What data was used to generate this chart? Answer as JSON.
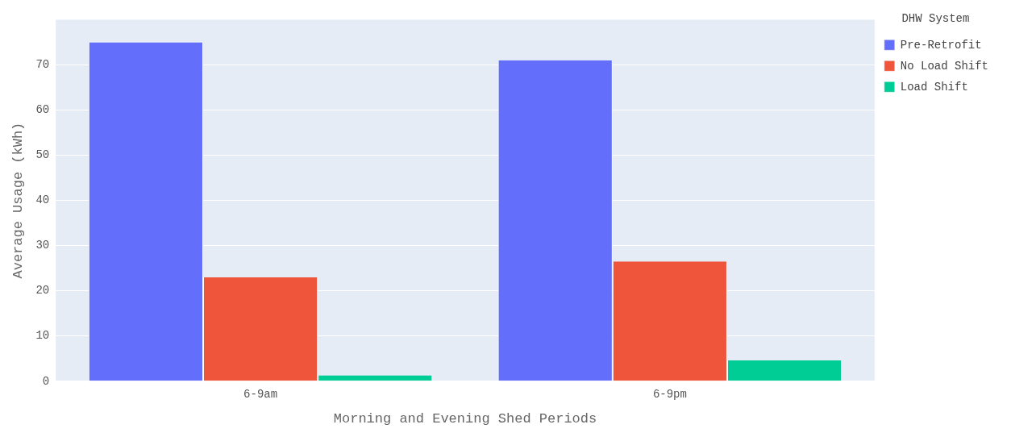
{
  "chart_data": {
    "type": "bar",
    "xlabel": "Morning and Evening Shed Periods",
    "ylabel": "Average Usage (kWh)",
    "legend_title": "DHW System",
    "categories": [
      "6-9am",
      "6-9pm"
    ],
    "series": [
      {
        "name": "Pre-Retrofit",
        "color": "#636efa",
        "values": [
          75,
          71
        ]
      },
      {
        "name": "No Load Shift",
        "color": "#ef553b",
        "values": [
          23,
          26.5
        ]
      },
      {
        "name": "Load Shift",
        "color": "#00cc96",
        "values": [
          1.3,
          4.6
        ]
      }
    ],
    "ylim": [
      0,
      80
    ],
    "yticks": [
      0,
      10,
      20,
      30,
      40,
      50,
      60,
      70
    ],
    "grid": "y",
    "legend": "top right"
  }
}
